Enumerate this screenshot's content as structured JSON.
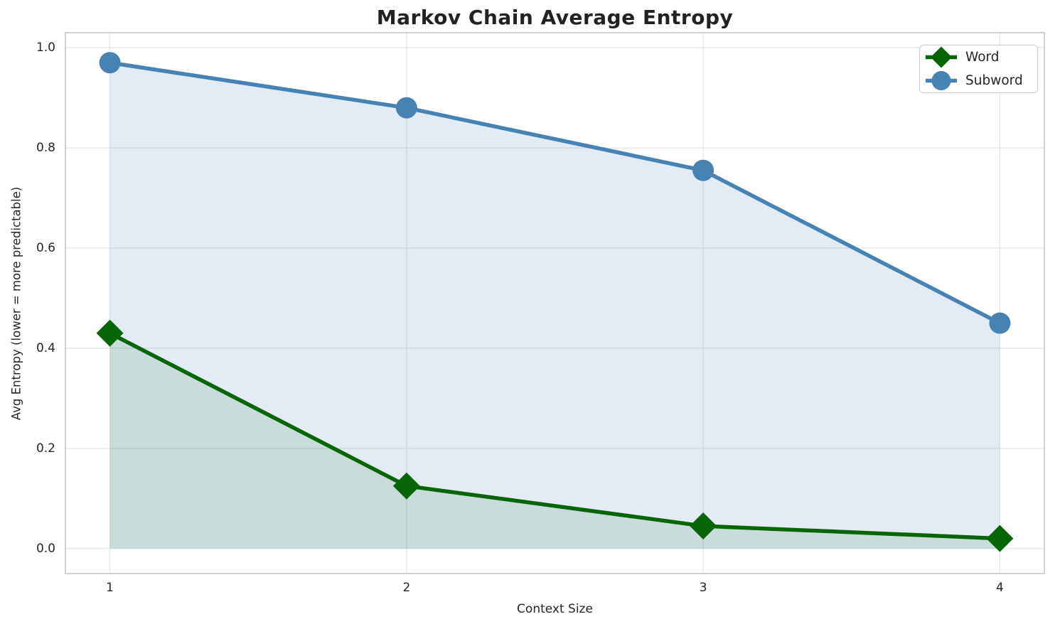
{
  "title": "Markov Chain Average Entropy",
  "chart_data": {
    "type": "line",
    "x": [
      1,
      2,
      3,
      4
    ],
    "series": [
      {
        "name": "Word",
        "values": [
          0.43,
          0.125,
          0.045,
          0.02
        ],
        "color": "#066606",
        "marker": "diamond",
        "fill_opacity": 0.12
      },
      {
        "name": "Subword",
        "values": [
          0.97,
          0.88,
          0.755,
          0.45
        ],
        "color": "#4682B4",
        "marker": "circle",
        "fill_opacity": 0.15
      }
    ],
    "title": "Markov Chain Average Entropy",
    "xlabel": "Context Size",
    "ylabel": "Avg Entropy (lower = more predictable)",
    "x_ticks": [
      "1",
      "2",
      "3",
      "4"
    ],
    "y_ticks": [
      "0.0",
      "0.2",
      "0.4",
      "0.6",
      "0.8",
      "1.0"
    ],
    "y_tick_values": [
      0.0,
      0.2,
      0.4,
      0.6,
      0.8,
      1.0
    ],
    "xlim": [
      0.85,
      4.15
    ],
    "ylim": [
      -0.05,
      1.03
    ],
    "grid": true,
    "area_fill_to_zero": true,
    "legend_position": "upper right",
    "grid_color": "#e8e8e8",
    "spine_color": "#cccccc",
    "text_color": "#262626"
  }
}
